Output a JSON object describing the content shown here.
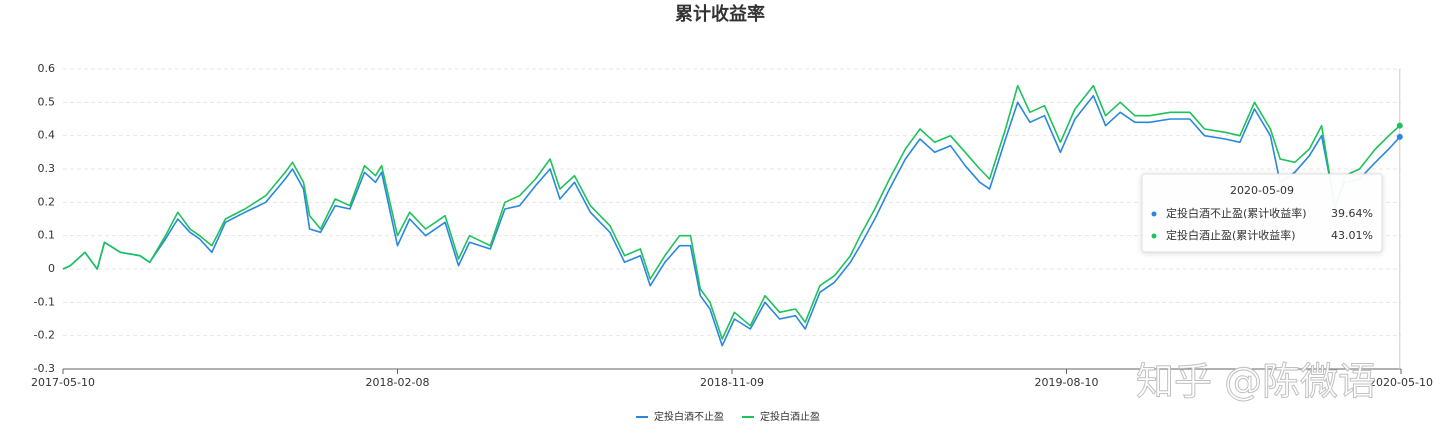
{
  "chart_data": {
    "type": "line",
    "title": "累计收益率",
    "x": [
      "2017-05-10",
      "2017-05-16",
      "2017-05-28",
      "2017-06-07",
      "2017-06-13",
      "2017-06-26",
      "2017-07-12",
      "2017-07-20",
      "2017-08-02",
      "2017-08-12",
      "2017-08-22",
      "2017-08-30",
      "2017-09-09",
      "2017-09-20",
      "2017-10-06",
      "2017-10-23",
      "2017-11-08",
      "2017-11-14",
      "2017-11-23",
      "2017-11-28",
      "2017-12-07",
      "2017-12-19",
      "2017-12-31",
      "2018-01-12",
      "2018-01-21",
      "2018-01-26",
      "2018-02-08",
      "2018-02-18",
      "2018-03-03",
      "2018-03-19",
      "2018-03-30",
      "2018-04-08",
      "2018-04-25",
      "2018-05-07",
      "2018-05-19",
      "2018-06-01",
      "2018-06-13",
      "2018-06-21",
      "2018-07-03",
      "2018-07-16",
      "2018-08-01",
      "2018-08-13",
      "2018-08-26",
      "2018-09-03",
      "2018-09-15",
      "2018-09-27",
      "2018-10-06",
      "2018-10-14",
      "2018-10-22",
      "2018-11-01",
      "2018-11-11",
      "2018-11-24",
      "2018-12-06",
      "2018-12-18",
      "2018-12-31",
      "2019-01-08",
      "2019-01-20",
      "2019-02-01",
      "2019-02-14",
      "2019-02-22",
      "2019-03-06",
      "2019-03-18",
      "2019-03-31",
      "2019-04-12",
      "2019-04-24",
      "2019-05-07",
      "2019-05-19",
      "2019-05-31",
      "2019-06-08",
      "2019-06-21",
      "2019-07-01",
      "2019-07-11",
      "2019-07-23",
      "2019-08-05",
      "2019-08-17",
      "2019-09-01",
      "2019-09-11",
      "2019-09-23",
      "2019-10-05",
      "2019-10-17",
      "2019-11-03",
      "2019-11-19",
      "2019-12-01",
      "2019-12-18",
      "2019-12-30",
      "2020-01-11",
      "2020-01-24",
      "2020-02-01",
      "2020-02-13",
      "2020-02-25",
      "2020-03-06",
      "2020-03-17",
      "2020-03-25",
      "2020-04-06",
      "2020-04-19",
      "2020-04-30",
      "2020-05-09"
    ],
    "series": [
      {
        "name": "定投白酒不止盈",
        "color": "#2a87e0",
        "values": [
          0,
          0.01,
          0.05,
          0,
          0.08,
          0.05,
          0.04,
          0.02,
          0.09,
          0.15,
          0.11,
          0.09,
          0.05,
          0.14,
          0.17,
          0.2,
          0.27,
          0.3,
          0.24,
          0.12,
          0.11,
          0.19,
          0.18,
          0.29,
          0.26,
          0.29,
          0.07,
          0.15,
          0.1,
          0.14,
          0.01,
          0.08,
          0.06,
          0.18,
          0.19,
          0.25,
          0.3,
          0.21,
          0.26,
          0.17,
          0.11,
          0.02,
          0.04,
          -0.05,
          0.02,
          0.07,
          0.07,
          -0.08,
          -0.12,
          -0.23,
          -0.15,
          -0.18,
          -0.1,
          -0.15,
          -0.14,
          -0.18,
          -0.07,
          -0.04,
          0.02,
          0.07,
          0.15,
          0.24,
          0.33,
          0.39,
          0.35,
          0.37,
          0.31,
          0.26,
          0.24,
          0.39,
          0.5,
          0.44,
          0.46,
          0.35,
          0.45,
          0.52,
          0.43,
          0.47,
          0.44,
          0.44,
          0.45,
          0.45,
          0.4,
          0.39,
          0.38,
          0.48,
          0.4,
          0.26,
          0.29,
          0.34,
          0.4,
          0.19,
          0.26,
          0.27,
          0.32,
          0.36,
          0.3964
        ]
      },
      {
        "name": "定投白酒止盈",
        "color": "#1dc25a",
        "values": [
          0,
          0.01,
          0.05,
          0,
          0.08,
          0.05,
          0.04,
          0.02,
          0.1,
          0.17,
          0.12,
          0.1,
          0.07,
          0.15,
          0.18,
          0.22,
          0.29,
          0.32,
          0.26,
          0.16,
          0.12,
          0.21,
          0.19,
          0.31,
          0.28,
          0.31,
          0.1,
          0.17,
          0.12,
          0.16,
          0.03,
          0.1,
          0.07,
          0.2,
          0.22,
          0.27,
          0.33,
          0.24,
          0.28,
          0.19,
          0.13,
          0.04,
          0.06,
          -0.03,
          0.04,
          0.1,
          0.1,
          -0.06,
          -0.1,
          -0.21,
          -0.13,
          -0.17,
          -0.08,
          -0.13,
          -0.12,
          -0.16,
          -0.05,
          -0.02,
          0.04,
          0.1,
          0.18,
          0.27,
          0.36,
          0.42,
          0.38,
          0.4,
          0.35,
          0.3,
          0.27,
          0.42,
          0.55,
          0.47,
          0.49,
          0.38,
          0.48,
          0.55,
          0.46,
          0.5,
          0.46,
          0.46,
          0.47,
          0.47,
          0.42,
          0.41,
          0.4,
          0.5,
          0.42,
          0.33,
          0.32,
          0.36,
          0.43,
          0.18,
          0.28,
          0.3,
          0.36,
          0.4,
          0.4301
        ]
      }
    ],
    "xlim": [
      "2017-05-10",
      "2020-05-10"
    ],
    "xticks": [
      "2017-05-10",
      "2018-02-08",
      "2018-11-09",
      "2019-08-10",
      "2020-05-10"
    ],
    "ylim": [
      -0.3,
      0.6
    ],
    "yticks": [
      -0.3,
      -0.2,
      -0.1,
      0,
      0.1,
      0.2,
      0.3,
      0.4,
      0.5,
      0.6
    ],
    "grid": true,
    "legend": "bottom",
    "tooltip": {
      "x": "2020-05-09",
      "items": [
        {
          "name": "定投白酒不止盈(累计收益率)",
          "value": 0.3964,
          "value_label": "39.64%"
        },
        {
          "name": "定投白酒止盈(累计收益率)",
          "value": 0.4301,
          "value_label": "43.01%"
        }
      ]
    },
    "watermark": "知乎 @陈微语"
  }
}
